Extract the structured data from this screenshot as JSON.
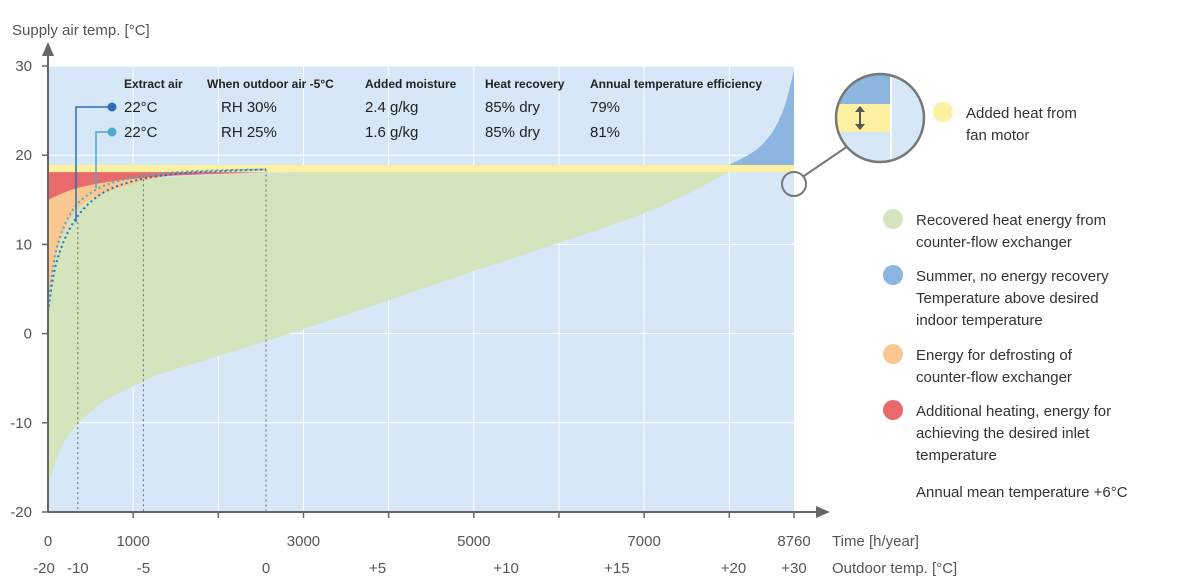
{
  "chart_data": {
    "type": "area",
    "title": "",
    "ylabel": "Supply air temp. [°C]",
    "xlabel": "Time [h/year]",
    "x2label": "Outdoor temp. [°C]",
    "xlim": [
      0,
      8760
    ],
    "ylim": [
      -20,
      30
    ],
    "y_ticks": [
      30,
      20,
      10,
      0,
      -10,
      -20
    ],
    "x_ticks": [
      {
        "value": 0,
        "label": "0"
      },
      {
        "value": 1000,
        "label": "1000"
      },
      {
        "value": 3000,
        "label": "3000"
      },
      {
        "value": 5000,
        "label": "5000"
      },
      {
        "value": 7000,
        "label": "7000"
      },
      {
        "value": 8760,
        "label": "8760"
      }
    ],
    "outdoor_ticks": [
      {
        "value": 0,
        "label": "-20"
      },
      {
        "value": 350,
        "label": "-10"
      },
      {
        "value": 1120,
        "label": "-5"
      },
      {
        "value": 2560,
        "label": "0"
      },
      {
        "value": 3870,
        "label": "+5"
      },
      {
        "value": 5380,
        "label": "+10"
      },
      {
        "value": 6680,
        "label": "+15"
      },
      {
        "value": 8050,
        "label": "+20"
      },
      {
        "value": 8760,
        "label": "+30"
      }
    ],
    "grid": true,
    "desired_supply_temp": 18.5,
    "series": [
      {
        "name": "Added heat from fan motor",
        "color": "#fdf0a0",
        "band": [
          18.1,
          18.9
        ]
      },
      {
        "name": "Recovered heat energy from counter-flow exchanger",
        "color": "#d4e4bc",
        "x": [
          0,
          200,
          600,
          1200,
          1500,
          3000,
          5000,
          7000,
          8000
        ],
        "lower": [
          -17,
          -12,
          -8,
          -5,
          -4,
          0.5,
          7,
          13.5,
          18.1
        ],
        "upper": [
          13,
          14.5,
          16,
          17.3,
          17.6,
          18.1,
          18.1,
          18.1,
          18.1
        ]
      },
      {
        "name": "Summer, no energy recovery Temperature above desired indoor temperature",
        "color": "#8cb5e0",
        "x": [
          8000,
          8300,
          8500,
          8650,
          8760
        ],
        "upper": [
          18.9,
          20.5,
          22.5,
          25.5,
          29.5
        ]
      },
      {
        "name": "Energy for defrosting of counter-flow exchanger",
        "color": "#f9c891",
        "x": [
          0,
          100,
          300,
          600,
          1000,
          1300
        ],
        "lower": [
          3,
          9,
          13.5,
          15.5,
          16.8,
          17.5
        ],
        "upper": [
          15,
          16,
          16.8,
          17.4,
          17.7,
          17.9
        ]
      },
      {
        "name": "Additional heating, energy for achieving the desired inlet temperature",
        "color": "#e86a6a",
        "x": [
          0,
          300,
          700,
          1300,
          2000,
          2600
        ],
        "lower": [
          15,
          16.2,
          17,
          17.6,
          17.9,
          18.1
        ],
        "upper": [
          18.5,
          18.5,
          18.5,
          18.5,
          18.5,
          18.5
        ]
      }
    ],
    "curves": [
      {
        "name": "22°C RH 30%",
        "color": "#2a6fb8",
        "x": [
          0,
          100,
          300,
          600,
          1000,
          1500,
          2000,
          2560
        ],
        "y": [
          2.5,
          8,
          12.5,
          15.5,
          17.1,
          17.9,
          18.2,
          18.4
        ]
      },
      {
        "name": "22°C RH 25%",
        "color": "#4fa9cc",
        "x": [
          0,
          100,
          300,
          600,
          1000,
          1500,
          2000,
          2560
        ],
        "y": [
          3,
          9.5,
          14,
          16.3,
          17.5,
          18.1,
          18.3,
          18.4
        ]
      }
    ],
    "dotted_markers_x": [
      350,
      1120,
      2560
    ],
    "table": {
      "headers": [
        "Extract air",
        "When outdoor air -5°C",
        "Added moisture",
        "Heat recovery",
        "Annual temperature efficiency"
      ],
      "rows": [
        [
          "22°C",
          "RH 30%",
          "2.4 g/kg",
          "85% dry",
          "79%"
        ],
        [
          "22°C",
          "RH 25%",
          "1.6 g/kg",
          "85% dry",
          "81%"
        ]
      ],
      "row_colors": [
        "#2a6fb8",
        "#4fa9cc"
      ]
    },
    "legend": {
      "placement": "right",
      "items": [
        {
          "label_lines": [
            "Added heat from",
            "fan motor"
          ],
          "color": "#fdf0a0"
        },
        {
          "label_lines": [
            "Recovered heat energy from",
            "counter-flow exchanger"
          ],
          "color": "#d4e4bc"
        },
        {
          "label_lines": [
            "Summer, no energy recovery",
            "Temperature above desired",
            "indoor temperature"
          ],
          "color": "#8cb5e0"
        },
        {
          "label_lines": [
            "Energy for defrosting of",
            "counter-flow exchanger"
          ],
          "color": "#f9c891"
        },
        {
          "label_lines": [
            "Additional heating, energy for",
            "achieving the desired inlet",
            "temperature"
          ],
          "color": "#e86a6a"
        }
      ],
      "note": "Annual mean temperature +6°C"
    },
    "colors": {
      "background": "#d6e8f7",
      "axis": "#666666",
      "grid": "#ffffff",
      "marker_line": "#666666"
    }
  }
}
